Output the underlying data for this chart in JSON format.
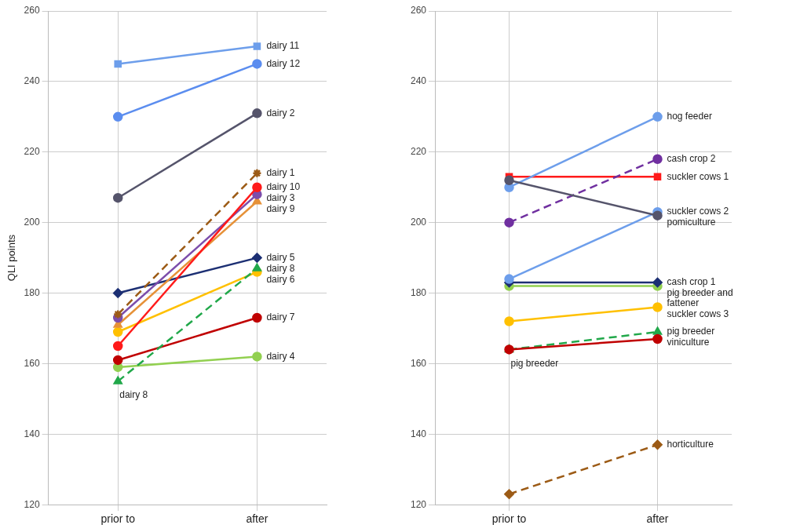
{
  "chart_data": [
    {
      "type": "line",
      "ylabel": "QLI points",
      "categories": [
        "prior to",
        "after"
      ],
      "ylim": [
        120,
        260
      ],
      "yticks": [
        120,
        140,
        160,
        180,
        200,
        220,
        240,
        260
      ],
      "grid": true,
      "legend": false,
      "series": [
        {
          "name": "dairy 11",
          "color": "#6d9eeb",
          "marker": "square",
          "values": [
            245,
            250
          ]
        },
        {
          "name": "dairy 12",
          "color": "#5b8def",
          "marker": "circle",
          "values": [
            230,
            245
          ]
        },
        {
          "name": "dairy 2",
          "color": "#55546b",
          "marker": "circle",
          "values": [
            207,
            231
          ]
        },
        {
          "name": "dairy 1",
          "color": "#9c5b16",
          "marker": "cross",
          "line_style": "dashed",
          "values": [
            174,
            214
          ]
        },
        {
          "name": "dairy 10",
          "color": "#ff1a1a",
          "marker": "circle",
          "values": [
            165,
            210
          ]
        },
        {
          "name": "dairy 3",
          "color": "#7c4dab",
          "marker": "circle",
          "values": [
            173,
            208
          ]
        },
        {
          "name": "dairy 9",
          "color": "#e69138",
          "marker": "triangle",
          "values": [
            171,
            206
          ]
        },
        {
          "name": "dairy 5",
          "color": "#1c2f73",
          "marker": "diamond",
          "values": [
            180,
            190
          ]
        },
        {
          "name": "dairy 8",
          "color": "#21a84a",
          "marker": "triangle",
          "line_style": "dashed",
          "values": [
            155,
            187
          ]
        },
        {
          "name": "dairy 6",
          "color": "#ffc000",
          "marker": "circle",
          "values": [
            169,
            186
          ]
        },
        {
          "name": "dairy 7",
          "color": "#c00000",
          "marker": "circle",
          "values": [
            161,
            173
          ]
        },
        {
          "name": "dairy 4",
          "color": "#92d050",
          "marker": "circle",
          "values": [
            159,
            162
          ]
        }
      ],
      "annotations": [
        {
          "text": "dairy 8",
          "x": "prior to",
          "y": 155
        }
      ]
    },
    {
      "type": "line",
      "categories": [
        "prior to",
        "after"
      ],
      "ylim": [
        120,
        260
      ],
      "yticks": [
        120,
        140,
        160,
        180,
        200,
        220,
        240,
        260
      ],
      "grid": true,
      "legend": false,
      "series": [
        {
          "name": "pomiculture",
          "color": "#55546b",
          "marker": "circle",
          "values": [
            212,
            202
          ]
        },
        {
          "name": "hog feeder",
          "color": "#6d9eeb",
          "marker": "circle",
          "values": [
            210,
            230
          ]
        },
        {
          "name": "cash crop 2",
          "color": "#7030a0",
          "marker": "circle",
          "line_style": "dashed",
          "values": [
            200,
            218
          ]
        },
        {
          "name": "suckler cows 1",
          "color": "#ff1a1a",
          "marker": "square",
          "values": [
            213,
            213
          ]
        },
        {
          "name": "suckler cows 2",
          "color": "#6d9eeb",
          "marker": "circle",
          "values": [
            184,
            203
          ]
        },
        {
          "name": "cash crop 1",
          "color": "#1c2f73",
          "marker": "diamond",
          "values": [
            183,
            183
          ]
        },
        {
          "name": "pig breeder and fattener",
          "color": "#92d050",
          "marker": "circle",
          "values": [
            182,
            182
          ]
        },
        {
          "name": "suckler cows 3",
          "color": "#ffc000",
          "marker": "circle",
          "values": [
            172,
            176
          ]
        },
        {
          "name": "viniculture",
          "color": "#c00000",
          "marker": "circle",
          "values": [
            164,
            167
          ]
        },
        {
          "name": "pig breeder",
          "color": "#21a84a",
          "marker": "triangle",
          "line_style": "dashed",
          "values": [
            164,
            169
          ]
        },
        {
          "name": "horticulture",
          "color": "#9c5b16",
          "marker": "diamond",
          "line_style": "dashed",
          "values": [
            123,
            137
          ]
        }
      ],
      "annotations": [
        {
          "text": "pig breeder",
          "x": "prior to",
          "y": 164
        }
      ]
    }
  ]
}
